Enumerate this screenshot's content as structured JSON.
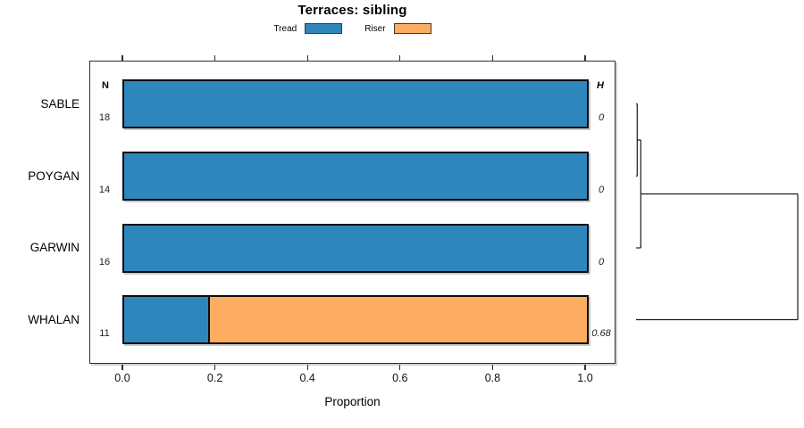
{
  "title": "Terraces: sibling",
  "legend": {
    "items": [
      {
        "label": "Tread",
        "color": "#2f86bd"
      },
      {
        "label": "Riser",
        "color": "#fcad61"
      }
    ]
  },
  "axis": {
    "label": "Proportion",
    "ticks": [
      "0.0",
      "0.2",
      "0.4",
      "0.6",
      "0.8",
      "1.0"
    ],
    "tick_values": [
      0,
      0.2,
      0.4,
      0.6,
      0.8,
      1.0
    ]
  },
  "columns": {
    "n_header": "N",
    "h_header": "H"
  },
  "chart_data": {
    "type": "bar",
    "orientation": "horizontal",
    "stacked": true,
    "title": "Terraces: sibling",
    "xlabel": "Proportion",
    "xlim": [
      0,
      1
    ],
    "grid": false,
    "legend_position": "top",
    "categories": [
      "SABLE",
      "POYGAN",
      "GARWIN",
      "WHALAN"
    ],
    "series": [
      {
        "name": "Tread",
        "color": "#2f86bd",
        "values": [
          1.0,
          1.0,
          1.0,
          0.182
        ]
      },
      {
        "name": "Riser",
        "color": "#fcad61",
        "values": [
          0.0,
          0.0,
          0.0,
          0.818
        ]
      }
    ],
    "n_values": [
      "18",
      "14",
      "16",
      "11"
    ],
    "h_values": [
      "0",
      "0",
      "0",
      "0.68"
    ],
    "dendrogram": {
      "orientation": "right",
      "max_height": 0.68,
      "merges": [
        {
          "left": 0,
          "right": 1,
          "height": 0
        },
        {
          "left": 4,
          "right": 2,
          "height": 0.02
        },
        {
          "left": 5,
          "right": 3,
          "height": 0.68
        }
      ]
    }
  }
}
